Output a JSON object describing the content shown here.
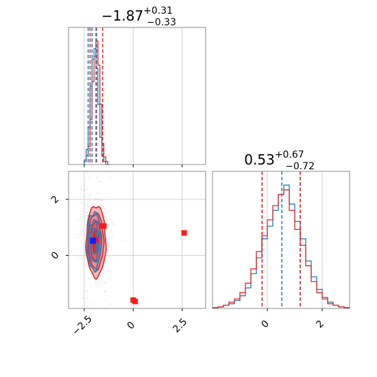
{
  "chart_data": [
    {
      "type": "histogram",
      "panel": "marginal-1",
      "title": {
        "main": "−1.87",
        "sup": "+0.31",
        "sub": "−0.33"
      },
      "xlim": [
        -3.3,
        3.7
      ],
      "xticks": [
        -2.5,
        0.0,
        2.5
      ],
      "series": [
        {
          "color": "#d62728",
          "x_bins": [
            -2.45,
            -2.35,
            -2.25,
            -2.15,
            -2.05,
            -1.95,
            -1.85,
            -1.75,
            -1.65,
            -1.55,
            -1.45,
            -1.35,
            -1.25
          ],
          "values": [
            2,
            6,
            12,
            30,
            55,
            72,
            82,
            66,
            40,
            14,
            5,
            2,
            0
          ]
        },
        {
          "color": "#1f77b4",
          "x_bins": [
            -2.45,
            -2.35,
            -2.25,
            -2.15,
            -2.05,
            -1.95,
            -1.85,
            -1.75,
            -1.65,
            -1.55,
            -1.45,
            -1.35,
            -1.25
          ],
          "values": [
            3,
            10,
            25,
            52,
            70,
            77,
            64,
            40,
            18,
            6,
            2,
            0,
            0
          ]
        }
      ],
      "quantile_lines": [
        {
          "color": "#d62728",
          "x": [
            -2.2,
            -1.87,
            -1.56
          ]
        },
        {
          "color": "#1f77b4",
          "x": [
            -2.3,
            -2.1,
            -1.9
          ]
        }
      ]
    },
    {
      "type": "histogram",
      "panel": "marginal-2",
      "title": {
        "main": "0.53",
        "sup": "+0.67",
        "sub": "−0.72"
      },
      "xlim": [
        -2.0,
        3.0
      ],
      "xticks": [
        0,
        2
      ],
      "series": [
        {
          "color": "#1f77b4",
          "x_bins": [
            -1.9,
            -1.7,
            -1.5,
            -1.3,
            -1.1,
            -0.9,
            -0.7,
            -0.5,
            -0.3,
            -0.1,
            0.1,
            0.3,
            0.5,
            0.7,
            0.9,
            1.1,
            1.3,
            1.5,
            1.7,
            1.9,
            2.1,
            2.3,
            2.5,
            2.7,
            2.9
          ],
          "values": [
            0.5,
            1,
            2,
            3,
            5,
            8,
            13,
            22,
            32,
            44,
            52,
            62,
            72,
            78,
            66,
            55,
            44,
            30,
            20,
            12,
            7,
            4,
            2,
            1,
            0.5
          ]
        },
        {
          "color": "#d62728",
          "x_bins": [
            -1.9,
            -1.7,
            -1.5,
            -1.3,
            -1.1,
            -0.9,
            -0.7,
            -0.5,
            -0.3,
            -0.1,
            0.1,
            0.3,
            0.5,
            0.7,
            0.9,
            1.1,
            1.3,
            1.5,
            1.7,
            1.9,
            2.1,
            2.3,
            2.5,
            2.7,
            2.9
          ],
          "values": [
            0.5,
            1,
            2,
            4,
            6,
            10,
            16,
            25,
            36,
            46,
            56,
            65,
            72,
            75,
            62,
            50,
            40,
            27,
            17,
            10,
            6,
            3,
            2,
            1,
            0.5
          ]
        }
      ],
      "quantile_lines": [
        {
          "color": "#1f77b4",
          "x": [
            -0.19,
            0.53,
            1.2
          ]
        },
        {
          "color": "#d62728",
          "x": [
            -0.19,
            1.2
          ]
        }
      ]
    },
    {
      "type": "contour",
      "panel": "joint",
      "xlim": [
        -3.3,
        3.7
      ],
      "ylim": [
        -1.9,
        3.0
      ],
      "xticks": [
        -2.5,
        0.0,
        2.5
      ],
      "yticks": [
        0,
        2
      ],
      "contours": [
        {
          "color": "#d62728",
          "center": [
            -1.9,
            0.5
          ],
          "sigma": [
            0.5,
            1.5
          ]
        },
        {
          "color": "#1f77b4",
          "center": [
            -2.0,
            0.5
          ],
          "sigma": [
            0.35,
            1.2
          ]
        }
      ],
      "points_red": [
        [
          -1.9,
          0.55
        ],
        [
          -1.6,
          1.05
        ],
        [
          -1.5,
          1.05
        ],
        [
          2.6,
          0.8
        ],
        [
          0.0,
          -1.6
        ],
        [
          0.1,
          -1.65
        ]
      ],
      "points_blue": [
        [
          -2.05,
          0.52
        ]
      ]
    }
  ]
}
